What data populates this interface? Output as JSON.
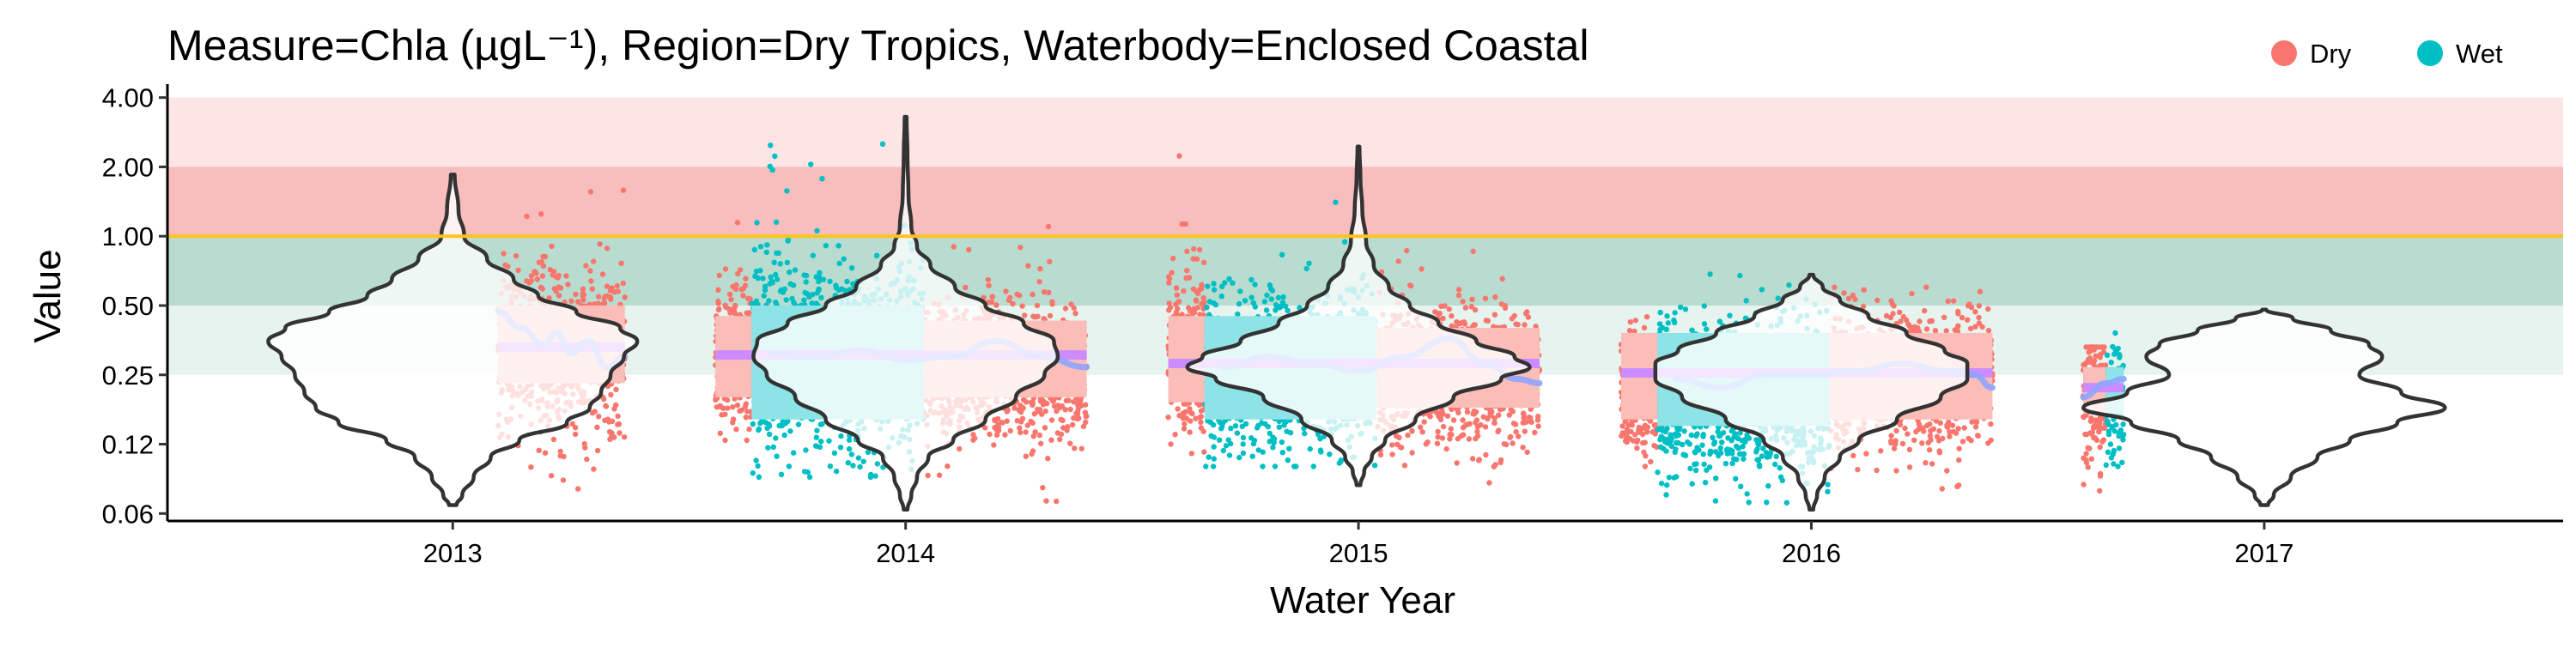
{
  "chart_data": {
    "type": "violin",
    "title": "Measure=Chla (µgL⁻¹), Region=Dry Tropics, Waterbody=Enclosed Coastal",
    "xlabel": "Water Year",
    "ylabel": "Value",
    "y_scale": "log2",
    "ylim": [
      0.058,
      4.2
    ],
    "y_ticks": [
      4.0,
      2.0,
      1.0,
      0.5,
      0.25,
      0.125,
      0.0625
    ],
    "y_tick_labels": [
      "4.00",
      "2.00",
      "1.00",
      "0.50",
      "0.25",
      "0.12",
      "0.06"
    ],
    "xlim": [
      2012.37,
      2017.66
    ],
    "x_ticks": [
      2013,
      2014,
      2015,
      2016,
      2017
    ],
    "x_tick_labels": [
      "2013",
      "2014",
      "2015",
      "2016",
      "2017"
    ],
    "grid": false,
    "legend": {
      "position": "top-right",
      "entries": [
        {
          "name": "Dry",
          "color": "#f8766d"
        },
        {
          "name": "Wet",
          "color": "#00bfc4"
        }
      ]
    },
    "reference_line": {
      "y": 1.0,
      "color": "#ffc31f"
    },
    "bands": [
      {
        "from": 2.0,
        "to": 4.0,
        "color": "#fde5e5"
      },
      {
        "from": 1.0,
        "to": 2.0,
        "color": "#f8bdbd"
      },
      {
        "from": 0.5,
        "to": 1.0,
        "color": "#b8dccf"
      },
      {
        "from": 0.25,
        "to": 0.5,
        "color": "#e6f3ee"
      }
    ],
    "violins": [
      {
        "year": 2013,
        "min": 0.068,
        "max": 1.85,
        "profile": [
          [
            0.068,
            0.02
          ],
          [
            0.075,
            0.05
          ],
          [
            0.09,
            0.11
          ],
          [
            0.11,
            0.2
          ],
          [
            0.13,
            0.35
          ],
          [
            0.155,
            0.6
          ],
          [
            0.18,
            0.72
          ],
          [
            0.21,
            0.78
          ],
          [
            0.25,
            0.83
          ],
          [
            0.3,
            0.9
          ],
          [
            0.35,
            0.97
          ],
          [
            0.4,
            0.88
          ],
          [
            0.47,
            0.65
          ],
          [
            0.55,
            0.45
          ],
          [
            0.65,
            0.32
          ],
          [
            0.8,
            0.18
          ],
          [
            1.0,
            0.06
          ],
          [
            1.3,
            0.03
          ],
          [
            1.85,
            0.01
          ]
        ]
      },
      {
        "year": 2014,
        "min": 0.065,
        "max": 3.3,
        "profile": [
          [
            0.065,
            0.01
          ],
          [
            0.075,
            0.03
          ],
          [
            0.09,
            0.06
          ],
          [
            0.11,
            0.12
          ],
          [
            0.13,
            0.25
          ],
          [
            0.16,
            0.42
          ],
          [
            0.2,
            0.58
          ],
          [
            0.25,
            0.73
          ],
          [
            0.3,
            0.8
          ],
          [
            0.35,
            0.78
          ],
          [
            0.42,
            0.62
          ],
          [
            0.5,
            0.42
          ],
          [
            0.6,
            0.26
          ],
          [
            0.75,
            0.13
          ],
          [
            0.9,
            0.06
          ],
          [
            1.1,
            0.03
          ],
          [
            1.5,
            0.015
          ],
          [
            2.2,
            0.01
          ],
          [
            3.3,
            0.005
          ]
        ]
      },
      {
        "year": 2015,
        "min": 0.083,
        "max": 2.45,
        "profile": [
          [
            0.083,
            0.01
          ],
          [
            0.095,
            0.03
          ],
          [
            0.11,
            0.07
          ],
          [
            0.13,
            0.14
          ],
          [
            0.16,
            0.3
          ],
          [
            0.2,
            0.5
          ],
          [
            0.24,
            0.75
          ],
          [
            0.27,
            0.9
          ],
          [
            0.3,
            0.82
          ],
          [
            0.35,
            0.62
          ],
          [
            0.42,
            0.42
          ],
          [
            0.5,
            0.27
          ],
          [
            0.6,
            0.16
          ],
          [
            0.75,
            0.08
          ],
          [
            0.95,
            0.04
          ],
          [
            1.3,
            0.02
          ],
          [
            1.8,
            0.01
          ],
          [
            2.45,
            0.005
          ]
        ]
      },
      {
        "year": 2016,
        "min": 0.065,
        "max": 0.68,
        "profile": [
          [
            0.065,
            0.01
          ],
          [
            0.075,
            0.03
          ],
          [
            0.09,
            0.07
          ],
          [
            0.11,
            0.15
          ],
          [
            0.13,
            0.25
          ],
          [
            0.16,
            0.45
          ],
          [
            0.2,
            0.68
          ],
          [
            0.24,
            0.82
          ],
          [
            0.28,
            0.82
          ],
          [
            0.32,
            0.7
          ],
          [
            0.38,
            0.5
          ],
          [
            0.45,
            0.3
          ],
          [
            0.53,
            0.15
          ],
          [
            0.6,
            0.06
          ],
          [
            0.68,
            0.01
          ]
        ]
      },
      {
        "year": 2017,
        "min": 0.068,
        "max": 0.48,
        "profile": [
          [
            0.068,
            0.02
          ],
          [
            0.075,
            0.05
          ],
          [
            0.09,
            0.14
          ],
          [
            0.11,
            0.28
          ],
          [
            0.13,
            0.45
          ],
          [
            0.155,
            0.7
          ],
          [
            0.18,
            0.95
          ],
          [
            0.21,
            0.72
          ],
          [
            0.25,
            0.5
          ],
          [
            0.3,
            0.62
          ],
          [
            0.34,
            0.55
          ],
          [
            0.39,
            0.35
          ],
          [
            0.44,
            0.15
          ],
          [
            0.48,
            0.01
          ]
        ]
      }
    ],
    "point_bands": [
      {
        "series": "Dry",
        "x0": 2013.1,
        "x1": 2013.38,
        "median": 0.32,
        "spread": 0.6,
        "tail_low": 0.075,
        "tail_high": 1.8,
        "n": 700
      },
      {
        "series": "Dry",
        "x0": 2013.58,
        "x1": 2013.66,
        "median": 0.3,
        "spread": 0.55,
        "tail_low": 0.13,
        "tail_high": 1.3,
        "n": 250
      },
      {
        "series": "Wet",
        "x0": 2013.66,
        "x1": 2014.04,
        "median": 0.3,
        "spread": 0.65,
        "tail_low": 0.09,
        "tail_high": 3.2,
        "n": 1100
      },
      {
        "series": "Dry",
        "x0": 2014.04,
        "x1": 2014.4,
        "median": 0.26,
        "spread": 0.5,
        "tail_low": 0.065,
        "tail_high": 1.3,
        "n": 900
      },
      {
        "series": "Dry",
        "x0": 2014.58,
        "x1": 2014.66,
        "median": 0.3,
        "spread": 0.6,
        "tail_low": 0.1,
        "tail_high": 2.3,
        "n": 250
      },
      {
        "series": "Wet",
        "x0": 2014.66,
        "x1": 2015.04,
        "median": 0.26,
        "spread": 0.55,
        "tail_low": 0.1,
        "tail_high": 1.7,
        "n": 1000
      },
      {
        "series": "Dry",
        "x0": 2015.04,
        "x1": 2015.4,
        "median": 0.25,
        "spread": 0.5,
        "tail_low": 0.085,
        "tail_high": 1.0,
        "n": 900
      },
      {
        "series": "Dry",
        "x0": 2015.58,
        "x1": 2015.66,
        "median": 0.2,
        "spread": 0.45,
        "tail_low": 0.1,
        "tail_high": 0.55,
        "n": 200
      },
      {
        "series": "Wet",
        "x0": 2015.66,
        "x1": 2016.04,
        "median": 0.2,
        "spread": 0.55,
        "tail_low": 0.065,
        "tail_high": 0.7,
        "n": 1000
      },
      {
        "series": "Dry",
        "x0": 2016.04,
        "x1": 2016.4,
        "median": 0.24,
        "spread": 0.5,
        "tail_low": 0.08,
        "tail_high": 0.6,
        "n": 900
      },
      {
        "series": "Dry",
        "x0": 2016.6,
        "x1": 2016.65,
        "median": 0.2,
        "spread": 0.45,
        "tail_low": 0.07,
        "tail_high": 0.33,
        "n": 150
      },
      {
        "series": "Wet",
        "x0": 2016.65,
        "x1": 2016.69,
        "median": 0.2,
        "spread": 0.45,
        "tail_low": 0.1,
        "tail_high": 0.38,
        "n": 100
      }
    ],
    "season_segments": [
      {
        "series": "Dry",
        "x0": 2013.1,
        "x1": 2013.38,
        "low": 0.23,
        "high": 0.5
      },
      {
        "series": "Dry",
        "x0": 2013.58,
        "x1": 2013.66,
        "low": 0.2,
        "high": 0.45
      },
      {
        "series": "Wet",
        "x0": 2013.66,
        "x1": 2014.04,
        "low": 0.16,
        "high": 0.5
      },
      {
        "series": "Dry",
        "x0": 2014.04,
        "x1": 2014.4,
        "low": 0.2,
        "high": 0.43
      },
      {
        "series": "Dry",
        "x0": 2014.58,
        "x1": 2014.66,
        "low": 0.19,
        "high": 0.45
      },
      {
        "series": "Wet",
        "x0": 2014.66,
        "x1": 2015.04,
        "low": 0.16,
        "high": 0.45
      },
      {
        "series": "Dry",
        "x0": 2015.04,
        "x1": 2015.4,
        "low": 0.18,
        "high": 0.4
      },
      {
        "series": "Dry",
        "x0": 2015.58,
        "x1": 2015.66,
        "low": 0.16,
        "high": 0.38
      },
      {
        "series": "Wet",
        "x0": 2015.66,
        "x1": 2016.04,
        "low": 0.15,
        "high": 0.38
      },
      {
        "series": "Dry",
        "x0": 2016.04,
        "x1": 2016.4,
        "low": 0.16,
        "high": 0.38
      },
      {
        "series": "Dry",
        "x0": 2016.6,
        "x1": 2016.65,
        "low": 0.17,
        "high": 0.27
      },
      {
        "series": "Wet",
        "x0": 2016.65,
        "x1": 2016.69,
        "low": 0.17,
        "high": 0.27
      }
    ],
    "annual_means": [
      {
        "x0": 2013.1,
        "x1": 2013.38,
        "value": 0.33
      },
      {
        "x0": 2013.58,
        "x1": 2014.4,
        "value": 0.305
      },
      {
        "x0": 2014.58,
        "x1": 2015.4,
        "value": 0.28
      },
      {
        "x0": 2015.58,
        "x1": 2016.4,
        "value": 0.255
      },
      {
        "x0": 2016.6,
        "x1": 2016.69,
        "value": 0.22
      }
    ],
    "smooth_trend": [
      [
        2013.1,
        0.47
      ],
      [
        2013.15,
        0.4
      ],
      [
        2013.2,
        0.34
      ],
      [
        2013.23,
        0.38
      ],
      [
        2013.26,
        0.31
      ],
      [
        2013.3,
        0.35
      ],
      [
        2013.34,
        0.27
      ],
      [
        2013.38,
        0.3
      ],
      [
        2013.58,
        0.33
      ],
      [
        2013.7,
        0.31
      ],
      [
        2013.8,
        0.3
      ],
      [
        2013.9,
        0.32
      ],
      [
        2014.0,
        0.29
      ],
      [
        2014.1,
        0.3
      ],
      [
        2014.2,
        0.35
      ],
      [
        2014.3,
        0.3
      ],
      [
        2014.4,
        0.27
      ],
      [
        2014.58,
        0.29
      ],
      [
        2014.7,
        0.27
      ],
      [
        2014.8,
        0.3
      ],
      [
        2014.9,
        0.28
      ],
      [
        2015.0,
        0.26
      ],
      [
        2015.1,
        0.3
      ],
      [
        2015.2,
        0.36
      ],
      [
        2015.28,
        0.28
      ],
      [
        2015.35,
        0.24
      ],
      [
        2015.4,
        0.23
      ],
      [
        2015.58,
        0.25
      ],
      [
        2015.7,
        0.24
      ],
      [
        2015.8,
        0.22
      ],
      [
        2015.9,
        0.25
      ],
      [
        2016.0,
        0.25
      ],
      [
        2016.1,
        0.26
      ],
      [
        2016.2,
        0.28
      ],
      [
        2016.3,
        0.26
      ],
      [
        2016.36,
        0.25
      ],
      [
        2016.4,
        0.22
      ],
      [
        2016.6,
        0.2
      ],
      [
        2016.65,
        0.23
      ],
      [
        2016.69,
        0.24
      ]
    ]
  }
}
